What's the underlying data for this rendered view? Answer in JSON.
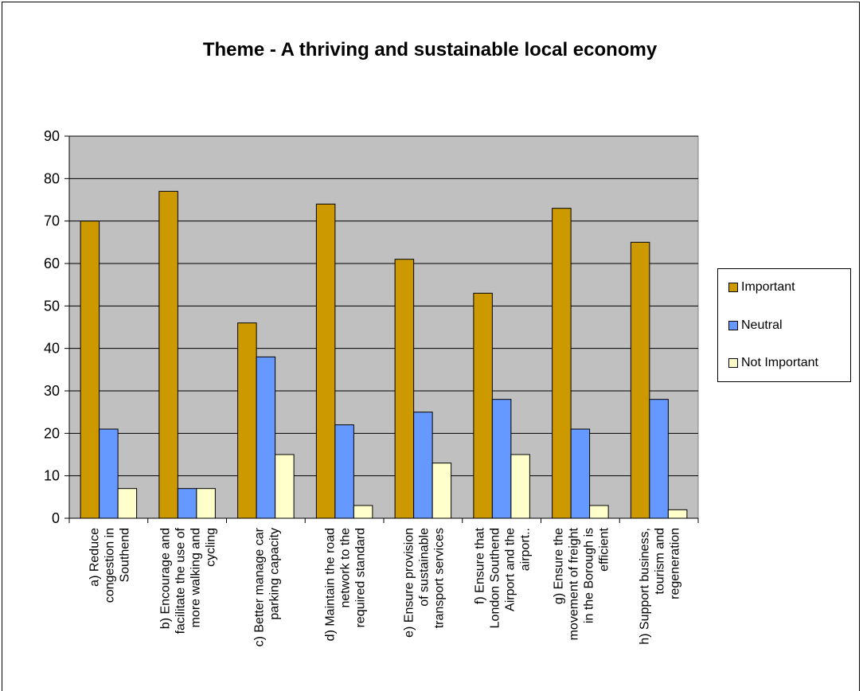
{
  "chart_data": {
    "type": "bar",
    "title": "Theme - A thriving and sustainable local economy",
    "xlabel": "",
    "ylabel": "",
    "ylim": [
      0,
      90
    ],
    "yticks": [
      0,
      10,
      20,
      30,
      40,
      50,
      60,
      70,
      80,
      90
    ],
    "grid": true,
    "legend_position": "right",
    "plot_background": "#c0c0c0",
    "categories": [
      [
        "a) Reduce",
        "congestion in",
        "Southend"
      ],
      [
        "b) Encourage and",
        "facilitate the use of",
        "more walking and",
        "cycling"
      ],
      [
        "c) Better manage car",
        "parking capacity"
      ],
      [
        "d) Maintain the road",
        "network to the",
        "required standard"
      ],
      [
        "e) Ensure provision",
        "of sustainable",
        "transport services"
      ],
      [
        "f) Ensure that",
        "London Southend",
        "Airport and the",
        "airport.."
      ],
      [
        "g) Ensure the",
        "movement of freight",
        "in the Borough is",
        "efficient"
      ],
      [
        "h) Support business,",
        "tourism and",
        "regeneration"
      ]
    ],
    "series": [
      {
        "name": "Important",
        "color": "#cc9900",
        "values": [
          70,
          77,
          46,
          74,
          61,
          53,
          73,
          65
        ]
      },
      {
        "name": "Neutral",
        "color": "#6699ff",
        "values": [
          21,
          7,
          38,
          22,
          25,
          28,
          21,
          28
        ]
      },
      {
        "name": "Not Important",
        "color": "#ffffcc",
        "values": [
          7,
          7,
          15,
          3,
          13,
          15,
          3,
          2
        ]
      }
    ]
  }
}
